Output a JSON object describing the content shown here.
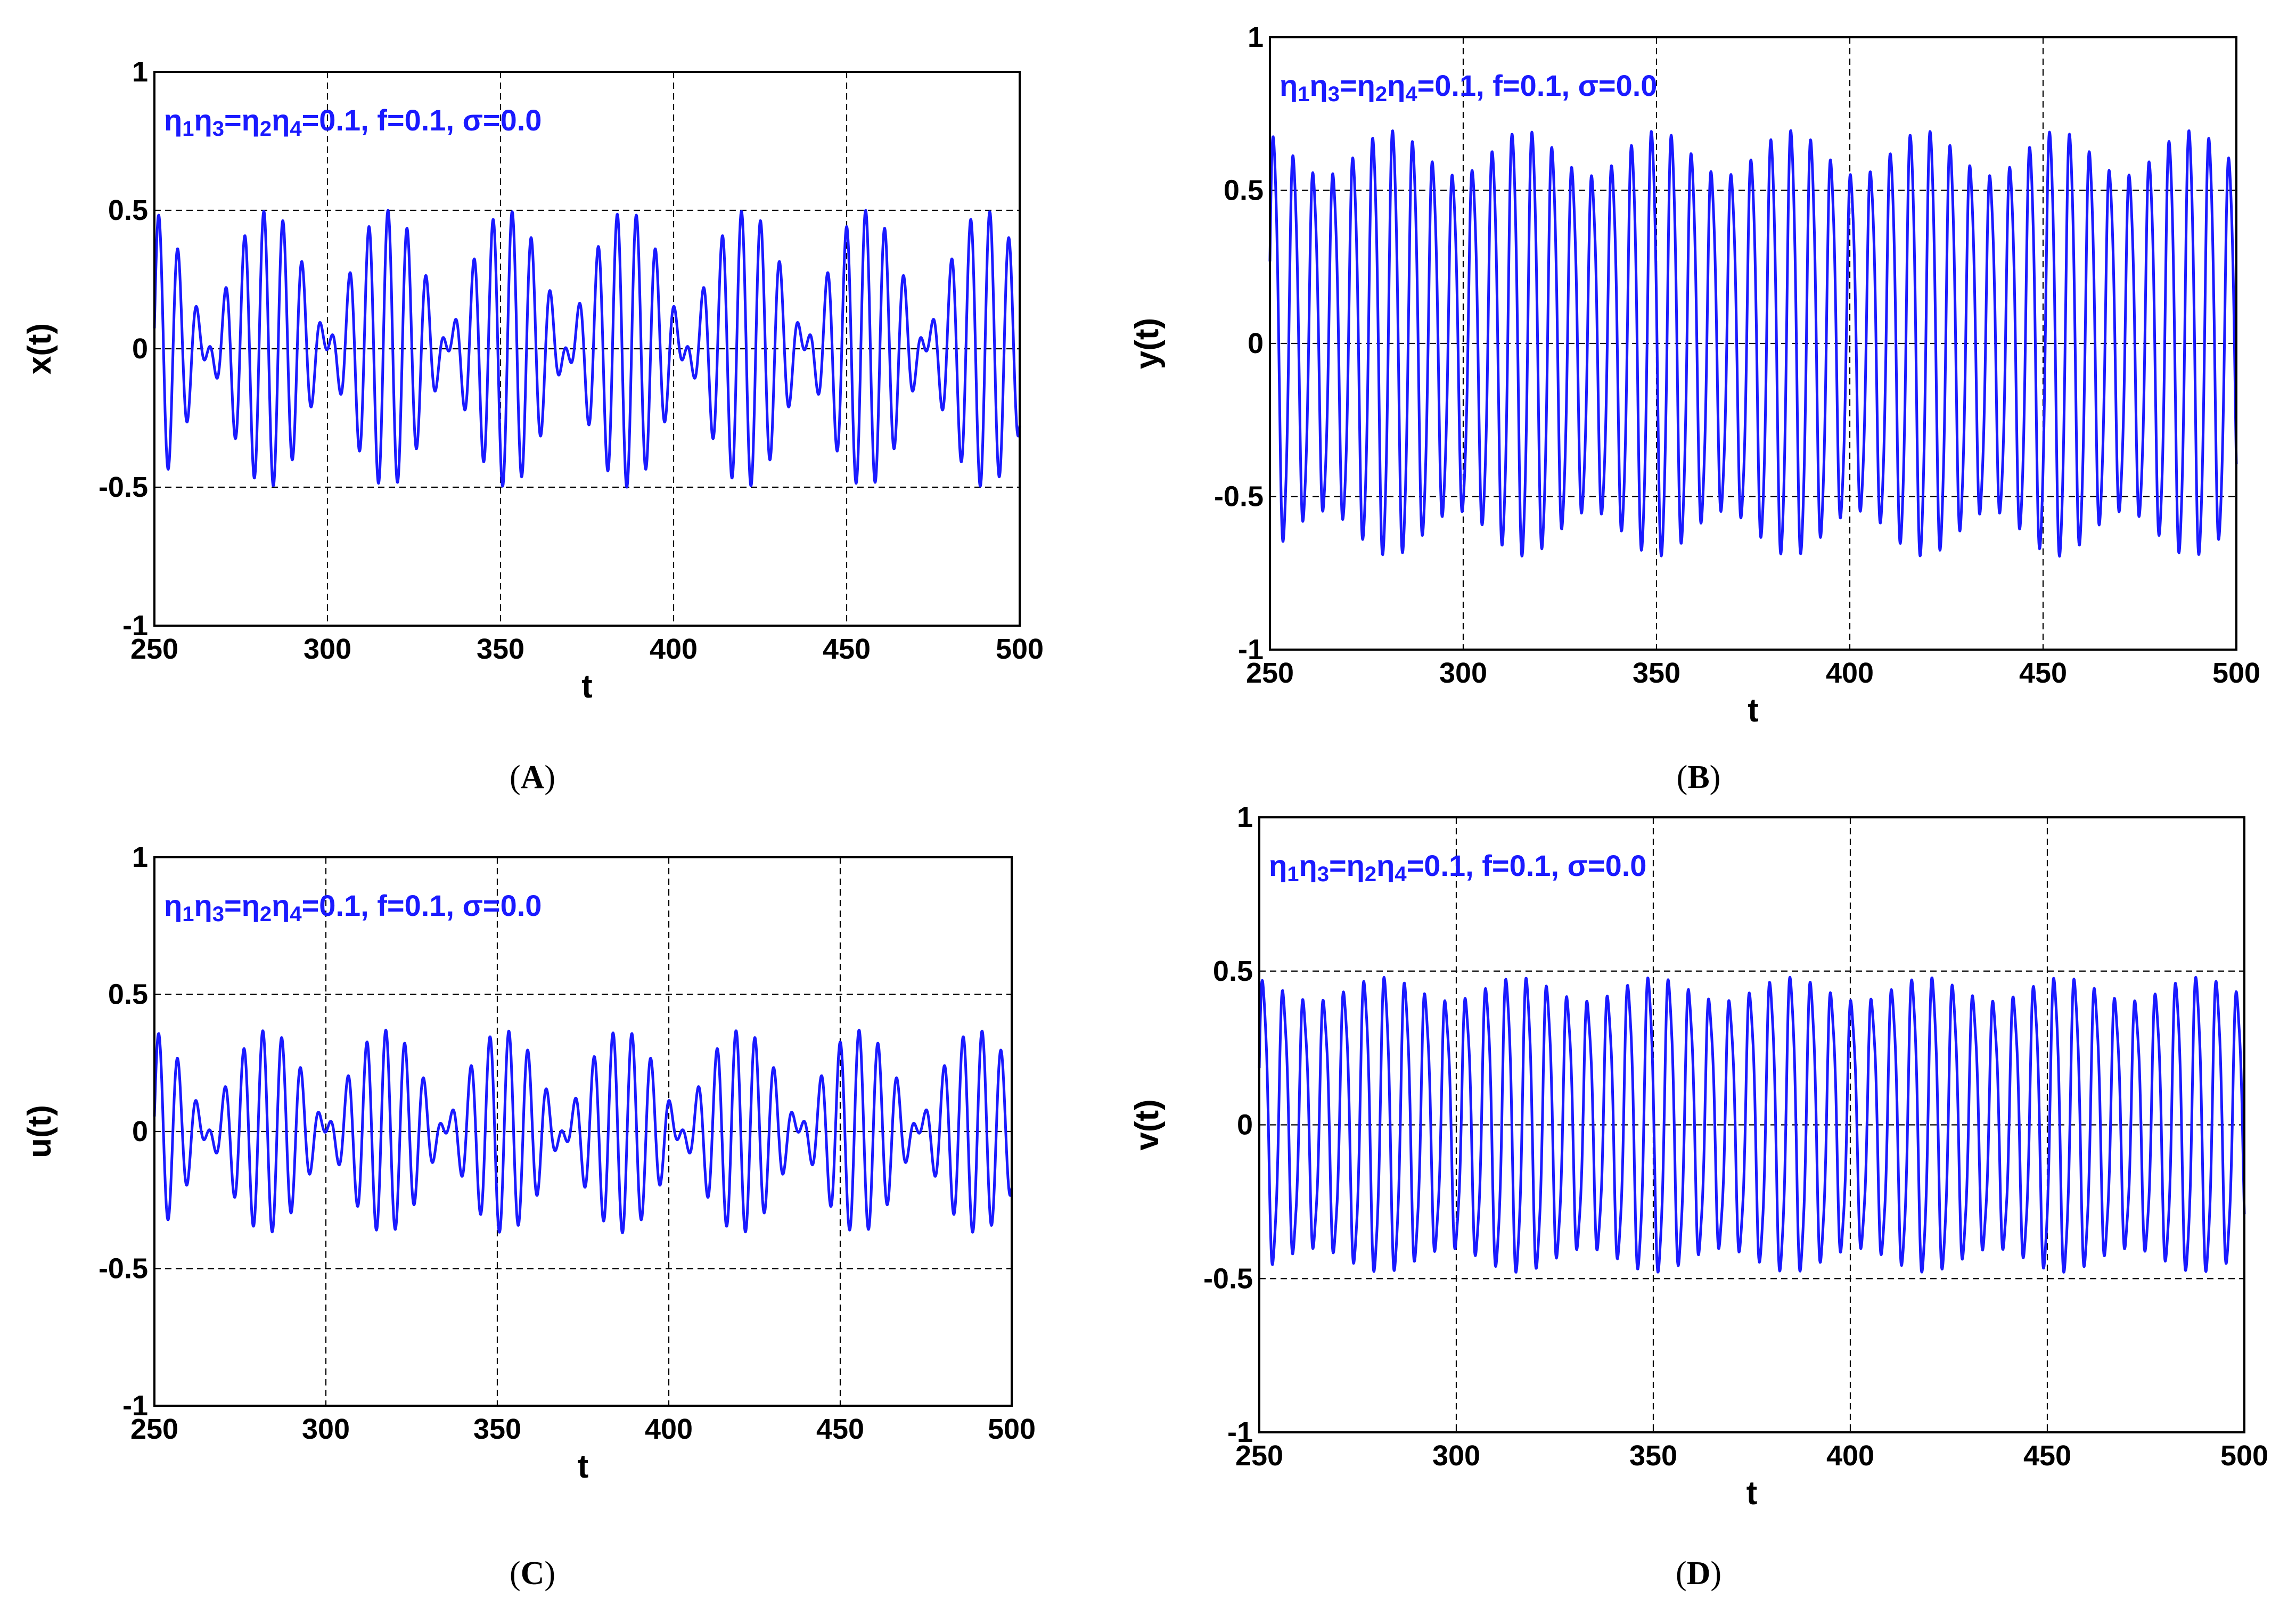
{
  "chart_data": [
    {
      "type": "line",
      "panel": "A",
      "caption": "(A)",
      "xlabel": "t",
      "ylabel": "x(t)",
      "xlim": [
        250,
        500
      ],
      "ylim": [
        -1,
        1
      ],
      "xticks": [
        "250",
        "300",
        "350",
        "400",
        "450",
        "500"
      ],
      "yticks": [
        "1",
        "0.5",
        "0",
        "-0.5",
        "-1"
      ],
      "grid": true,
      "annotation": {
        "eta1": "η",
        "sub1": "1",
        "eta3": "η",
        "sub3": "3",
        "eq1": "=",
        "eta2": "η",
        "sub2": "2",
        "eta4": "η",
        "sub4": "4",
        "rest": "=0.1, f=0.1, σ=0.0"
      },
      "series": [
        {
          "color": "#1a1aff",
          "amplitude_peak": 0.5,
          "period": 6.0,
          "beat_period": 34.5,
          "x": [
            250,
            500
          ]
        }
      ]
    },
    {
      "type": "line",
      "panel": "B",
      "caption": "(B)",
      "xlabel": "t",
      "ylabel": "y(t)",
      "xlim": [
        250,
        500
      ],
      "ylim": [
        -1,
        1
      ],
      "xticks": [
        "250",
        "300",
        "350",
        "400",
        "450",
        "500"
      ],
      "yticks": [
        "1",
        "0.5",
        "0",
        "-0.5",
        "-1"
      ],
      "grid": true,
      "annotation": {
        "eta1": "η",
        "sub1": "1",
        "eta3": "η",
        "sub3": "3",
        "eq1": "=",
        "eta2": "η",
        "sub2": "2",
        "eta4": "η",
        "sub4": "4",
        "rest": "=0.1, f=0.1, σ=0.0"
      },
      "series": [
        {
          "color": "#1a1aff",
          "amplitude_peak": 0.7,
          "amplitude_min": 0.55,
          "period": 5.15,
          "beat_period": 34.5,
          "x": [
            250,
            500
          ]
        }
      ]
    },
    {
      "type": "line",
      "panel": "C",
      "caption": "(C)",
      "xlabel": "t",
      "ylabel": "u(t)",
      "xlim": [
        250,
        500
      ],
      "ylim": [
        -1,
        1
      ],
      "xticks": [
        "250",
        "300",
        "350",
        "400",
        "450",
        "500"
      ],
      "yticks": [
        "1",
        "0.5",
        "0",
        "-0.5",
        "-1"
      ],
      "grid": true,
      "annotation": {
        "eta1": "η",
        "sub1": "1",
        "eta3": "η",
        "sub3": "3",
        "eq1": "=",
        "eta2": "η",
        "sub2": "2",
        "eta4": "η",
        "sub4": "4",
        "rest": "=0.1, f=0.1, σ=0.0"
      },
      "series": [
        {
          "color": "#1a1aff",
          "amplitude_peak": 0.37,
          "period": 6.0,
          "beat_period": 34.5,
          "x": [
            250,
            500
          ]
        }
      ]
    },
    {
      "type": "line",
      "panel": "D",
      "caption": "(D)",
      "xlabel": "t",
      "ylabel": "v(t)",
      "xlim": [
        250,
        500
      ],
      "ylim": [
        -1,
        1
      ],
      "xticks": [
        "250",
        "300",
        "350",
        "400",
        "450",
        "500"
      ],
      "yticks": [
        "1",
        "0.5",
        "0",
        "-0.5",
        "-1"
      ],
      "grid": true,
      "annotation": {
        "eta1": "η",
        "sub1": "1",
        "eta3": "η",
        "sub3": "3",
        "eq1": "=",
        "eta2": "η",
        "sub2": "2",
        "eta4": "η",
        "sub4": "4",
        "rest": "=0.1, f=0.1, σ=0.0"
      },
      "series": [
        {
          "color": "#1a1aff",
          "amplitude_peak": 0.48,
          "amplitude_min": 0.4,
          "period": 5.15,
          "beat_period": 34.5,
          "x": [
            250,
            500
          ]
        }
      ]
    }
  ]
}
